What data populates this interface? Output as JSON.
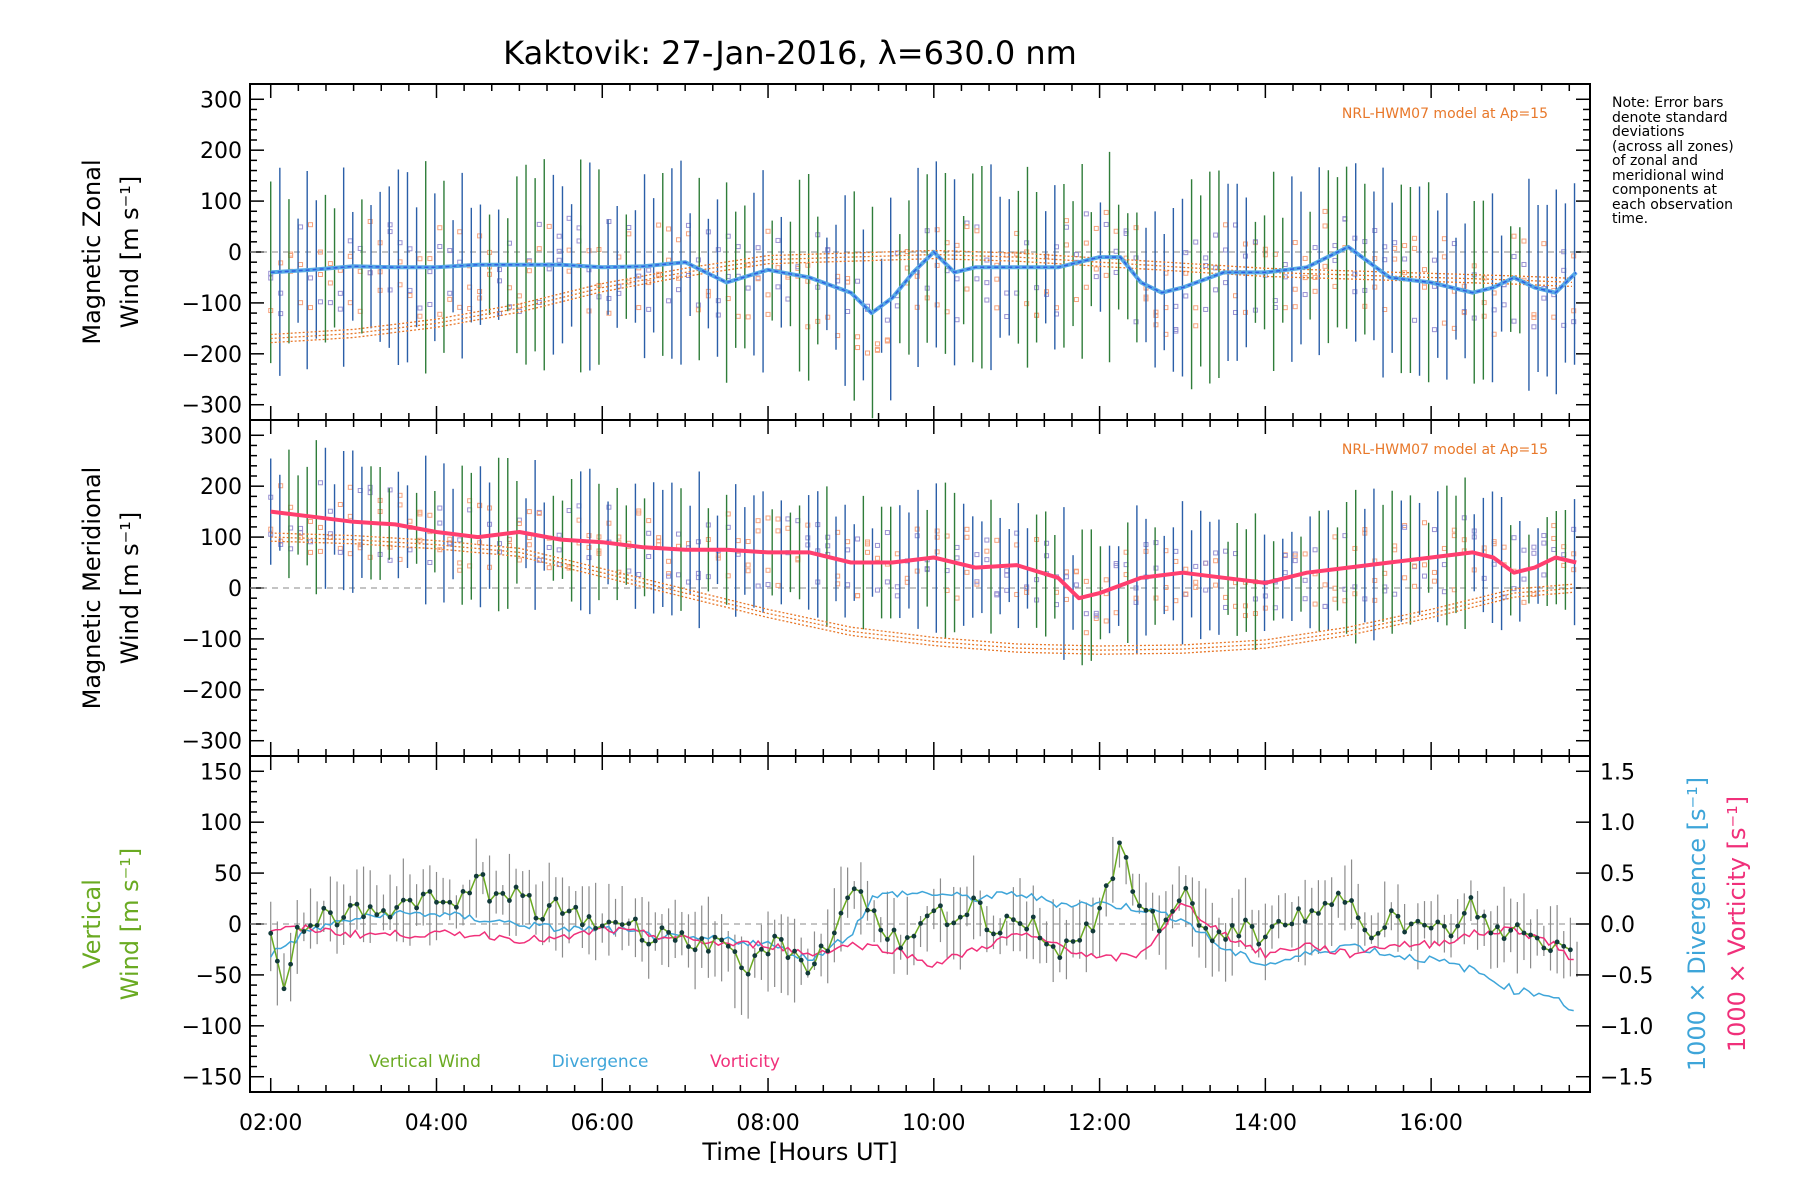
{
  "title": "Kaktovik: 27-Jan-2016, λ=630.0 nm",
  "note_lines": [
    "Note: Error bars",
    "denote standard",
    "deviations",
    "(across all zones)",
    "of zonal and",
    "meridional wind",
    "components at",
    "each observation",
    "time."
  ],
  "colors": {
    "zonal_mean": "#2f5fe0",
    "zonal_mean_light": "#57a9e6",
    "meridional_mean": "#ff3f6f",
    "error_bar_green": "#2f7d3a",
    "error_bar_blue": "#2b5fa8",
    "model": "#e8782a",
    "scatter_orange": "#f6a37e",
    "scatter_purple": "#9a92d3",
    "vertical_wind": "#6aaa22",
    "divergence": "#3ea5d9",
    "vorticity": "#f0307a",
    "error_bar_gray": "#8c8c8c"
  },
  "chart_data": [
    {
      "type": "line",
      "name": "zonal",
      "ylabel_line1": "Magnetic Zonal",
      "ylabel_line2": "Wind [m s⁻¹]",
      "ylim": [
        -330,
        330
      ],
      "yticks": [
        -300,
        -200,
        -100,
        0,
        100,
        200,
        300
      ],
      "xlim": [
        "01:45",
        "17:55"
      ],
      "annotation": "NRL-HWM07 model at Ap=15",
      "mean_series": {
        "x": [
          "02:00",
          "02:30",
          "03:00",
          "03:30",
          "04:00",
          "04:30",
          "05:00",
          "05:30",
          "06:00",
          "06:30",
          "07:00",
          "07:30",
          "08:00",
          "08:30",
          "09:00",
          "09:15",
          "09:30",
          "09:45",
          "10:00",
          "10:15",
          "10:30",
          "11:00",
          "11:30",
          "12:00",
          "12:15",
          "12:30",
          "12:45",
          "13:00",
          "13:30",
          "14:00",
          "14:30",
          "15:00",
          "15:30",
          "16:00",
          "16:30",
          "16:45",
          "17:00",
          "17:15",
          "17:30",
          "17:45"
        ],
        "y": [
          -40,
          -35,
          -28,
          -30,
          -30,
          -25,
          -25,
          -25,
          -30,
          -28,
          -20,
          -60,
          -35,
          -50,
          -80,
          -120,
          -90,
          -40,
          0,
          -40,
          -30,
          -30,
          -30,
          -10,
          -10,
          -60,
          -80,
          -70,
          -40,
          -40,
          -30,
          10,
          -50,
          -60,
          -80,
          -70,
          -50,
          -70,
          -80,
          -40
        ],
        "color": "#2f5fe0"
      },
      "model_curves": {
        "x": [
          "02:00",
          "03:00",
          "04:00",
          "05:00",
          "06:00",
          "07:00",
          "08:00",
          "09:00",
          "10:00",
          "11:00",
          "12:00",
          "13:00",
          "14:00",
          "15:00",
          "16:00",
          "17:00",
          "17:45"
        ],
        "y": [
          -170,
          -160,
          -140,
          -110,
          -70,
          -40,
          -15,
          -10,
          -5,
          -10,
          -20,
          -30,
          -40,
          -45,
          -50,
          -55,
          -60
        ]
      },
      "error_bar_spread_m_s": 150
    },
    {
      "type": "line",
      "name": "meridional",
      "ylabel_line1": "Magnetic Meridional",
      "ylabel_line2": "Wind [m s⁻¹]",
      "ylim": [
        -330,
        330
      ],
      "yticks": [
        -300,
        -200,
        -100,
        0,
        100,
        200,
        300
      ],
      "xlim": [
        "01:45",
        "17:55"
      ],
      "annotation": "NRL-HWM07 model at Ap=15",
      "mean_series": {
        "x": [
          "02:00",
          "02:30",
          "03:00",
          "03:30",
          "04:00",
          "04:30",
          "05:00",
          "05:30",
          "06:00",
          "06:30",
          "07:00",
          "07:30",
          "08:00",
          "08:30",
          "09:00",
          "09:30",
          "10:00",
          "10:30",
          "11:00",
          "11:30",
          "11:45",
          "12:00",
          "12:30",
          "13:00",
          "13:30",
          "14:00",
          "14:30",
          "15:00",
          "15:30",
          "16:00",
          "16:30",
          "16:45",
          "17:00",
          "17:15",
          "17:30",
          "17:45"
        ],
        "y": [
          150,
          140,
          130,
          125,
          110,
          100,
          110,
          95,
          90,
          80,
          75,
          75,
          70,
          70,
          50,
          50,
          60,
          40,
          45,
          20,
          -20,
          -10,
          20,
          30,
          20,
          10,
          30,
          40,
          50,
          60,
          70,
          60,
          30,
          40,
          60,
          50
        ],
        "color": "#ff3f6f"
      },
      "model_curves": {
        "x": [
          "02:00",
          "03:00",
          "04:00",
          "05:00",
          "06:00",
          "07:00",
          "08:00",
          "09:00",
          "10:00",
          "11:00",
          "12:00",
          "13:00",
          "14:00",
          "15:00",
          "16:00",
          "16:30",
          "17:00",
          "17:45"
        ],
        "y": [
          100,
          95,
          85,
          70,
          30,
          -10,
          -50,
          -85,
          -105,
          -118,
          -122,
          -120,
          -110,
          -85,
          -50,
          -30,
          -10,
          0
        ]
      },
      "error_bar_spread_m_s": 110
    },
    {
      "type": "line",
      "name": "vertical",
      "ylabel_line1": "Vertical",
      "ylabel_line2": "Wind [m s⁻¹]",
      "right_label_1": "1000 × Divergence [s⁻¹]",
      "right_label_2": "1000 × Vorticity [s⁻¹]",
      "ylim": [
        -165,
        165
      ],
      "yticks": [
        -150,
        -100,
        -50,
        0,
        50,
        100,
        150
      ],
      "y2lim": [
        -1.65,
        1.65
      ],
      "y2ticks": [
        -1.5,
        -1.0,
        -0.5,
        0.0,
        0.5,
        1.0,
        1.5
      ],
      "xlim": [
        "01:45",
        "17:55"
      ],
      "xticks": [
        "02:00",
        "04:00",
        "06:00",
        "08:00",
        "10:00",
        "12:00",
        "14:00",
        "16:00"
      ],
      "xlabel": "Time [Hours UT]",
      "legend": [
        "Vertical Wind",
        "Divergence",
        "Vorticity"
      ],
      "series": [
        {
          "name": "Vertical Wind",
          "x": [
            "02:00",
            "02:10",
            "02:20",
            "02:30",
            "02:45",
            "03:00",
            "03:15",
            "03:30",
            "03:45",
            "04:00",
            "04:15",
            "04:30",
            "04:45",
            "05:00",
            "05:15",
            "05:30",
            "05:45",
            "06:00",
            "06:15",
            "06:30",
            "06:45",
            "07:00",
            "07:15",
            "07:30",
            "07:45",
            "08:00",
            "08:15",
            "08:30",
            "08:45",
            "09:00",
            "09:15",
            "09:30",
            "09:45",
            "10:00",
            "10:15",
            "10:30",
            "10:45",
            "11:00",
            "11:15",
            "11:30",
            "11:45",
            "12:00",
            "12:15",
            "12:30",
            "12:45",
            "13:00",
            "13:15",
            "13:30",
            "13:45",
            "14:00",
            "14:15",
            "14:30",
            "14:45",
            "15:00",
            "15:15",
            "15:30",
            "15:45",
            "16:00",
            "16:15",
            "16:30",
            "16:45",
            "17:00",
            "17:15",
            "17:30",
            "17:45"
          ],
          "y": [
            -20,
            -55,
            -10,
            10,
            5,
            15,
            20,
            10,
            25,
            20,
            15,
            50,
            20,
            30,
            10,
            15,
            5,
            0,
            5,
            -10,
            -5,
            -20,
            -15,
            -30,
            -50,
            -20,
            -25,
            -40,
            -20,
            40,
            10,
            -10,
            -20,
            15,
            -10,
            20,
            -15,
            10,
            -5,
            -25,
            -10,
            5,
            75,
            20,
            -10,
            40,
            -10,
            -20,
            5,
            -20,
            10,
            0,
            15,
            30,
            -5,
            10,
            -10,
            5,
            -15,
            20,
            -10,
            -5,
            -15,
            -20,
            -30
          ]
        },
        {
          "name": "Divergence",
          "x": [
            "02:00",
            "02:30",
            "03:00",
            "03:30",
            "04:00",
            "04:30",
            "05:00",
            "05:30",
            "06:00",
            "06:30",
            "07:00",
            "07:30",
            "08:00",
            "08:30",
            "09:00",
            "09:15",
            "09:30",
            "10:00",
            "10:30",
            "11:00",
            "11:30",
            "12:00",
            "12:30",
            "13:00",
            "13:30",
            "14:00",
            "14:30",
            "15:00",
            "15:30",
            "16:00",
            "16:30",
            "16:45",
            "17:00",
            "17:30",
            "17:45"
          ],
          "y": [
            -0.3,
            -0.05,
            0.05,
            0.1,
            0.1,
            0.05,
            0.0,
            -0.05,
            -0.05,
            -0.1,
            -0.15,
            -0.15,
            -0.2,
            -0.35,
            -0.1,
            0.25,
            0.3,
            0.3,
            0.25,
            0.3,
            0.2,
            0.2,
            0.15,
            0.05,
            -0.25,
            -0.4,
            -0.3,
            -0.2,
            -0.3,
            -0.35,
            -0.45,
            -0.55,
            -0.65,
            -0.7,
            -0.9
          ]
        },
        {
          "name": "Vorticity",
          "x": [
            "02:00",
            "02:30",
            "03:00",
            "03:30",
            "04:00",
            "04:30",
            "05:00",
            "05:30",
            "06:00",
            "06:30",
            "07:00",
            "07:30",
            "08:00",
            "08:30",
            "09:00",
            "09:30",
            "10:00",
            "10:30",
            "11:00",
            "11:30",
            "12:00",
            "12:30",
            "13:00",
            "13:30",
            "14:00",
            "14:30",
            "15:00",
            "15:30",
            "16:00",
            "16:30",
            "17:00",
            "17:30",
            "17:45"
          ],
          "y": [
            -0.05,
            -0.05,
            -0.1,
            -0.1,
            -0.1,
            -0.1,
            -0.15,
            -0.15,
            -0.05,
            -0.1,
            -0.15,
            -0.2,
            -0.2,
            -0.3,
            -0.2,
            -0.25,
            -0.4,
            -0.25,
            -0.1,
            -0.2,
            -0.35,
            -0.3,
            0.2,
            -0.1,
            -0.3,
            -0.2,
            -0.3,
            -0.2,
            -0.2,
            -0.1,
            -0.05,
            -0.2,
            -0.4
          ]
        }
      ],
      "error_bar_spread_m_s": 30
    }
  ]
}
